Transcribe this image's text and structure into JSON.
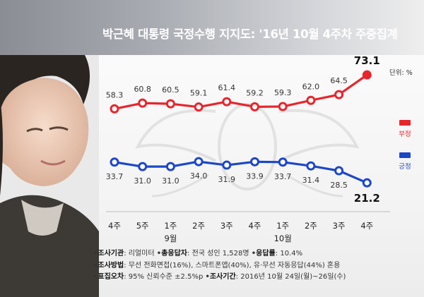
{
  "title": "박근혜 대통령 국정수행 지지도: '16년 10월 4주차 주중집계",
  "unit_label": "단위: %",
  "colors": {
    "negative": "#e8252c",
    "positive": "#1d47c9"
  },
  "chart_data": {
    "type": "line",
    "categories": [
      "4주",
      "5주",
      "1주",
      "2주",
      "3주",
      "4주",
      "1주",
      "2주",
      "3주",
      "4주"
    ],
    "month_labels": [
      {
        "label": "9월",
        "category_index": 2
      },
      {
        "label": "10월",
        "category_index": 6
      }
    ],
    "series": [
      {
        "name": "부정",
        "color": "#e8252c",
        "values": [
          58.3,
          60.8,
          60.5,
          59.1,
          61.4,
          59.2,
          59.3,
          62.0,
          64.5,
          73.1
        ],
        "labels": [
          "58.3",
          "60.8",
          "60.5",
          "59.1",
          "61.4",
          "59.2",
          "59.3",
          "62.0",
          "64.5",
          "73.1"
        ]
      },
      {
        "name": "긍정",
        "color": "#1d47c9",
        "values": [
          33.7,
          31.0,
          31.0,
          34.0,
          31.9,
          33.9,
          33.7,
          31.4,
          28.5,
          21.2
        ],
        "labels": [
          "33.7",
          "31.0",
          "31.0",
          "34.0",
          "31.9",
          "33.9",
          "33.7",
          "31.4",
          "28.5",
          "21.2"
        ]
      }
    ]
  },
  "footer": {
    "line1": [
      {
        "label": "조사기관",
        "value": "리얼미터"
      },
      {
        "label": "총응답자",
        "value": "전국 성인 1,528명"
      },
      {
        "label": "응답률",
        "value": "10.4%"
      }
    ],
    "line2": [
      {
        "label": "조사방법",
        "value": "무선 전화면접(16%), 스마트폰앱(40%), 유·무선 자동응답(44%) 혼용"
      }
    ],
    "line3": [
      {
        "label": "표집오차",
        "value": "95% 신뢰수준 ±2.5%p"
      },
      {
        "label": "조사기간",
        "value": "2016년 10월 24일(월)~26일(수)"
      }
    ]
  }
}
